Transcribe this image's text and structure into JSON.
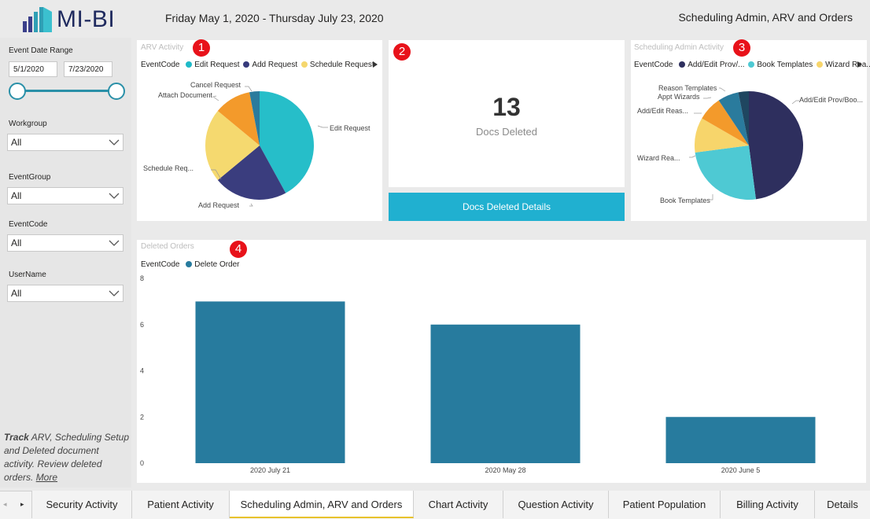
{
  "header": {
    "logo_text": "MI-BI",
    "date_range": "Friday May 1, 2020 - Thursday July 23, 2020",
    "page_title": "Scheduling Admin, ARV and Orders"
  },
  "sidebar": {
    "event_date_label": "Event Date Range",
    "date_start": "5/1/2020",
    "date_end": "7/23/2020",
    "filters": [
      {
        "label": "Workgroup",
        "value": "All"
      },
      {
        "label": "EventGroup",
        "value": "All"
      },
      {
        "label": "EventCode",
        "value": "All"
      },
      {
        "label": "UserName",
        "value": "All"
      }
    ],
    "note_bold": "Track",
    "note_text": " ARV, Scheduling Setup and Deleted document activity. Review deleted orders. ",
    "note_link": "More"
  },
  "badges": [
    "1",
    "2",
    "3",
    "4"
  ],
  "arv": {
    "title": "ARV Activity",
    "legend_label": "EventCode",
    "legend": [
      {
        "name": "Edit Request",
        "color": "#1fbac8"
      },
      {
        "name": "Add Request",
        "color": "#373b7c"
      },
      {
        "name": "Schedule Request",
        "color": "#f5d76e"
      }
    ],
    "labels": [
      "Edit Request",
      "Add Request",
      "Schedule Req...",
      "Attach Document",
      "Cancel Request"
    ]
  },
  "docs_deleted": {
    "value": "13",
    "label": "Docs Deleted",
    "button": "Docs Deleted Details"
  },
  "sched": {
    "title": "Scheduling Admin Activity",
    "legend_label": "EventCode",
    "legend": [
      {
        "name": "Add/Edit Prov/...",
        "color": "#2e2f5e"
      },
      {
        "name": "Book Templates",
        "color": "#4ec9d3"
      },
      {
        "name": "Wizard Rea...",
        "color": "#f7d56b"
      }
    ],
    "labels": [
      "Add/Edit Prov/Boo...",
      "Book Templates",
      "Wizard Rea...",
      "Add/Edit Reas...",
      "Appt Wizards",
      "Reason Templates"
    ]
  },
  "orders": {
    "title": "Deleted Orders",
    "legend_label": "EventCode",
    "legend_item": "Delete Order",
    "color": "#277b9e"
  },
  "chart_data": [
    {
      "type": "pie",
      "title": "ARV Activity",
      "categories": [
        "Edit Request",
        "Add Request",
        "Schedule Request",
        "Attach Document",
        "Cancel Request"
      ],
      "values": [
        42,
        22,
        22,
        11,
        3
      ]
    },
    {
      "type": "pie",
      "title": "Scheduling Admin Activity",
      "categories": [
        "Add/Edit Prov/Boo...",
        "Book Templates",
        "Wizard Rea...",
        "Add/Edit Reas...",
        "Appt Wizards",
        "Reason Templates"
      ],
      "values": [
        46,
        24,
        10,
        7,
        6,
        3
      ]
    },
    {
      "type": "bar",
      "title": "Deleted Orders",
      "categories": [
        "2020 July 21",
        "2020 May 28",
        "2020 June 5"
      ],
      "series": [
        {
          "name": "Delete Order",
          "values": [
            7,
            6,
            2
          ]
        }
      ],
      "yticks": [
        "0",
        "2",
        "4",
        "6",
        "8"
      ],
      "ylim": [
        0,
        8
      ]
    }
  ],
  "tabs": [
    "Security Activity",
    "Patient Activity",
    "Scheduling Admin, ARV and Orders",
    "Chart Activity",
    "Question Activity",
    "Patient Population",
    "Billing Activity",
    "Details"
  ],
  "active_tab": 2
}
